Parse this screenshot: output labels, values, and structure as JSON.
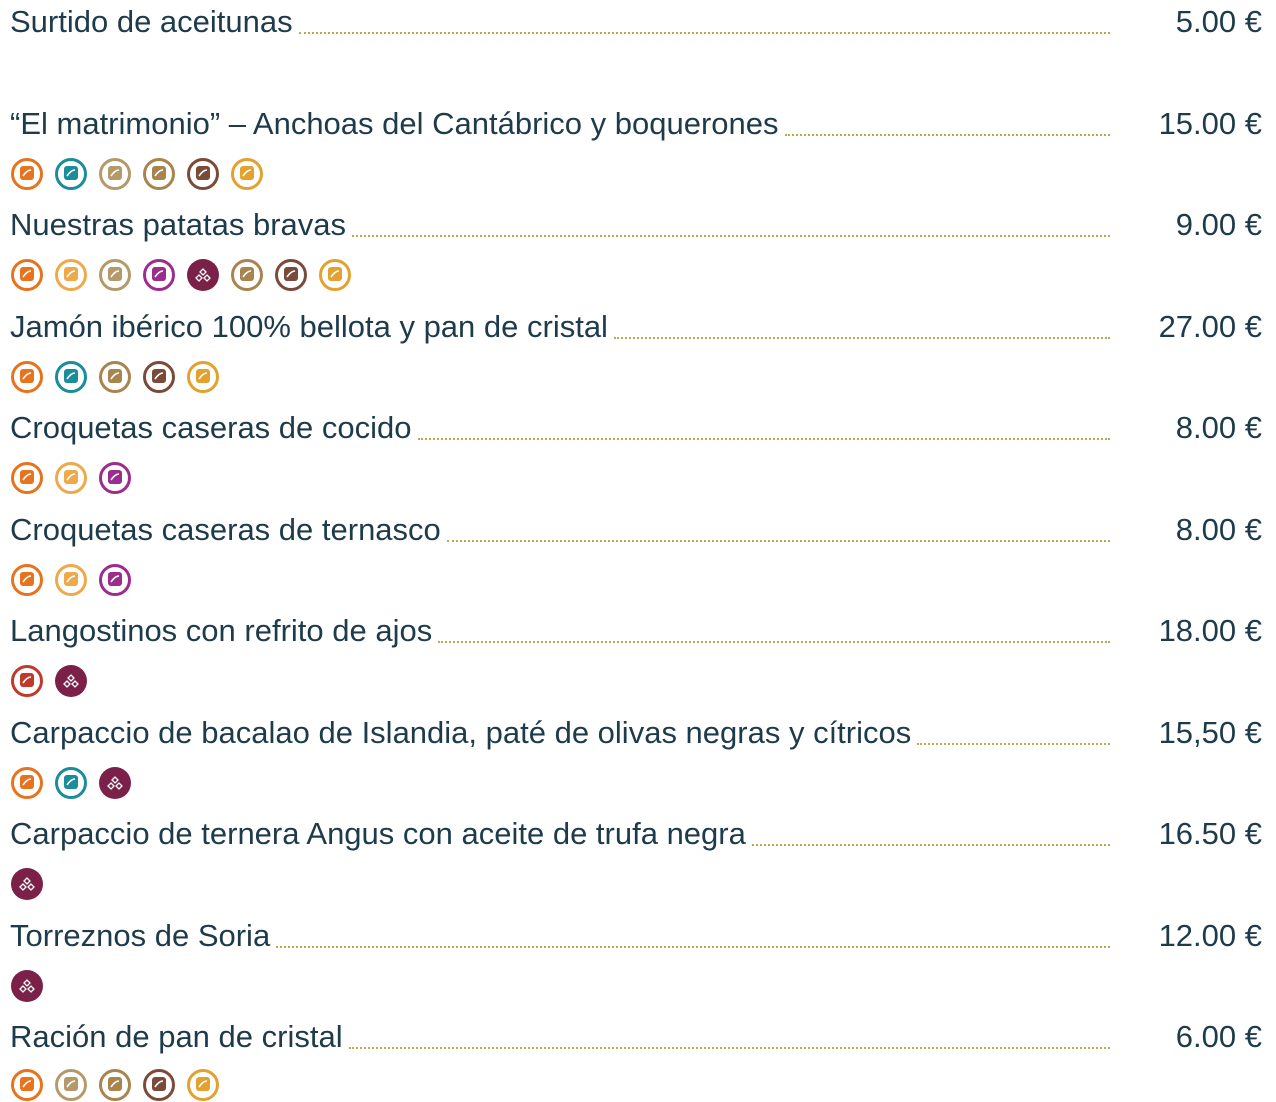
{
  "items": [
    {
      "name": "Surtido de aceitunas",
      "price": "5.00 €"
    },
    {
      "name": "“El matrimonio” – Anchoas del Cantábrico y boquerones",
      "price": "15.00 €"
    },
    {
      "name": "Nuestras patatas bravas",
      "price": "9.00 €"
    },
    {
      "name": "Jamón ibérico 100% bellota y pan de cristal",
      "price": "27.00 €"
    },
    {
      "name": "Croquetas caseras de cocido",
      "price": "8.00 €"
    },
    {
      "name": "Croquetas caseras de ternasco",
      "price": "8.00 €"
    },
    {
      "name": "Langostinos con refrito de ajos",
      "price": "18.00 €"
    },
    {
      "name": "Carpaccio de bacalao de Islandia, paté de olivas negras y cítricos",
      "price": "15,50 €"
    },
    {
      "name": "Carpaccio de ternera Angus con aceite de trufa negra",
      "price": "16.50 €"
    },
    {
      "name": "Torreznos de Soria",
      "price": "12.00 €"
    },
    {
      "name": "Ración de pan de cristal",
      "price": "6.00 €"
    }
  ]
}
